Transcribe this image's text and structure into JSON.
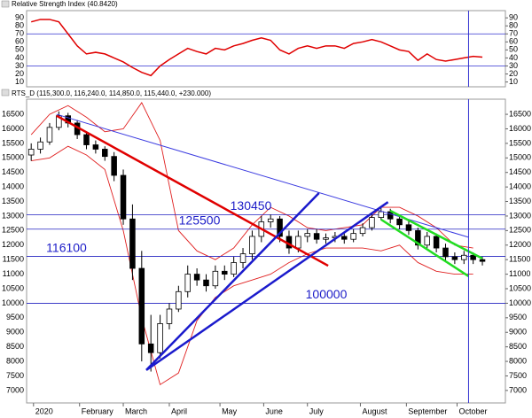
{
  "chart_data": [
    {
      "type": "line",
      "title": "Relative Strength Index (40.8420)",
      "xlim": [
        -2,
        206
      ],
      "ylim": [
        4,
        99
      ],
      "yticks": [
        10,
        20,
        30,
        40,
        50,
        60,
        70,
        80,
        90
      ],
      "levels": [
        30,
        70
      ],
      "level_color": "#3030d0",
      "color": "#e00000",
      "x": [
        0,
        4,
        8,
        12,
        16,
        20,
        24,
        28,
        32,
        36,
        40,
        44,
        48,
        52,
        56,
        60,
        64,
        68,
        72,
        76,
        80,
        84,
        88,
        92,
        96,
        100,
        104,
        108,
        112,
        116,
        120,
        124,
        128,
        132,
        136,
        140,
        144,
        148,
        152,
        156,
        160,
        164,
        168,
        172,
        176,
        180,
        184,
        188,
        192,
        196
      ],
      "values": [
        85,
        88,
        88,
        85,
        70,
        55,
        45,
        47,
        45,
        40,
        35,
        28,
        22,
        18,
        30,
        38,
        45,
        52,
        48,
        45,
        52,
        50,
        55,
        58,
        62,
        65,
        62,
        50,
        45,
        52,
        55,
        52,
        55,
        55,
        52,
        58,
        60,
        63,
        60,
        55,
        50,
        48,
        37,
        45,
        38,
        36,
        38,
        40,
        42,
        41
      ],
      "cursor_x": 190
    },
    {
      "type": "candlestick",
      "title": "RTS_D (115,300.0, 116,240.0, 114,850.0, 115,440.0, +230.000)",
      "xlim": [
        -2,
        206
      ],
      "ylim": [
        6570,
        17020
      ],
      "yticks": [
        7000,
        7500,
        8000,
        8500,
        9000,
        9500,
        10000,
        10500,
        11000,
        11500,
        12000,
        12500,
        13000,
        13500,
        14000,
        14500,
        15000,
        15500,
        16000,
        16500
      ],
      "xticks": [
        {
          "value": 1,
          "label": "2020"
        },
        {
          "value": 21,
          "label": "February"
        },
        {
          "value": 40,
          "label": "March"
        },
        {
          "value": 60,
          "label": "April"
        },
        {
          "value": 82,
          "label": "May"
        },
        {
          "value": 101,
          "label": "June"
        },
        {
          "value": 120,
          "label": "July"
        },
        {
          "value": 143,
          "label": "August"
        },
        {
          "value": 163,
          "label": "September"
        },
        {
          "value": 185,
          "label": "October"
        }
      ],
      "x": [
        0,
        4,
        8,
        12,
        16,
        20,
        24,
        28,
        32,
        36,
        40,
        44,
        48,
        52,
        56,
        60,
        64,
        68,
        72,
        76,
        80,
        84,
        88,
        92,
        96,
        100,
        104,
        108,
        112,
        116,
        120,
        124,
        128,
        132,
        136,
        140,
        144,
        148,
        152,
        156,
        160,
        164,
        168,
        172,
        176,
        180,
        184,
        188,
        192,
        196
      ],
      "open": [
        15100,
        15300,
        15550,
        16050,
        16450,
        16200,
        15800,
        15450,
        15300,
        15050,
        14400,
        12900,
        11200,
        8600,
        8300,
        9300,
        9800,
        10400,
        11000,
        10800,
        10600,
        11100,
        11000,
        11400,
        11700,
        12300,
        12800,
        12900,
        12300,
        11900,
        12300,
        12400,
        12200,
        12250,
        12300,
        12200,
        12400,
        12600,
        12950,
        13150,
        12900,
        12700,
        12500,
        12000,
        12300,
        11900,
        11600,
        11500,
        11650,
        11500
      ],
      "high": [
        15500,
        15700,
        16200,
        16600,
        16550,
        16300,
        15900,
        15600,
        15400,
        15200,
        14600,
        13400,
        11800,
        9600,
        9600,
        10000,
        10600,
        11300,
        11200,
        11000,
        11300,
        11300,
        11600,
        11900,
        12500,
        13000,
        13050,
        13000,
        12500,
        12500,
        12550,
        12550,
        12400,
        12450,
        12450,
        12550,
        12750,
        13100,
        13300,
        13250,
        13000,
        12850,
        12600,
        12450,
        12400,
        12050,
        11750,
        11800,
        11750,
        11600
      ],
      "low": [
        14900,
        15150,
        15450,
        15950,
        16050,
        15650,
        15300,
        15150,
        14900,
        14200,
        12700,
        10800,
        8000,
        7650,
        8100,
        9100,
        9700,
        10200,
        10600,
        10400,
        10500,
        10800,
        10900,
        11200,
        11500,
        12100,
        12600,
        12100,
        11700,
        11750,
        12100,
        12050,
        12050,
        12100,
        12050,
        12100,
        12300,
        12500,
        12850,
        12750,
        12550,
        12350,
        11850,
        11900,
        11750,
        11450,
        11350,
        11350,
        11350,
        11300
      ],
      "close": [
        15300,
        15550,
        16050,
        16450,
        16200,
        15800,
        15450,
        15300,
        15050,
        14400,
        12900,
        11200,
        8600,
        8300,
        9300,
        9800,
        10400,
        11000,
        10800,
        10600,
        11100,
        11000,
        11400,
        11700,
        12300,
        12800,
        12900,
        12300,
        11900,
        12300,
        12400,
        12200,
        12250,
        12300,
        12200,
        12400,
        12600,
        12950,
        13150,
        12900,
        12700,
        12500,
        12000,
        12300,
        11900,
        11600,
        11500,
        11650,
        11500,
        11440
      ],
      "up_color": "#ffffff",
      "down_color": "#000000",
      "bands": {
        "color": "#e02020",
        "x": [
          0,
          8,
          16,
          24,
          32,
          40,
          48,
          56,
          64,
          72,
          80,
          88,
          96,
          104,
          112,
          120,
          128,
          136,
          144,
          152,
          160,
          168,
          176,
          184,
          192
        ],
        "upper": [
          15800,
          16500,
          16800,
          16400,
          15900,
          16000,
          16900,
          15600,
          12500,
          11800,
          11500,
          11900,
          12700,
          13300,
          13000,
          12600,
          12500,
          12600,
          12700,
          13300,
          13300,
          13000,
          12600,
          12000,
          11900
        ],
        "lower": [
          14900,
          15000,
          15400,
          15100,
          14600,
          12500,
          9500,
          7200,
          7600,
          9400,
          10200,
          10600,
          10800,
          11000,
          11400,
          11700,
          11900,
          11900,
          11900,
          11800,
          12000,
          11400,
          11100,
          11000,
          11000
        ]
      },
      "hlines": [
        {
          "value": 13045,
          "label": "130450"
        },
        {
          "value": 12550,
          "label": "125500"
        },
        {
          "value": 11610,
          "label": "116100"
        },
        {
          "value": 10000,
          "label": "100000"
        }
      ],
      "hline_color": "#2020c0",
      "trendlines": [
        {
          "color": "#e00000",
          "x": [
            11,
            129
          ],
          "y": [
            16450,
            11290
          ]
        },
        {
          "color": "#3a3ae0",
          "x": [
            11,
            190
          ],
          "y": [
            16500,
            12270
          ]
        },
        {
          "color": "#1a1acc",
          "x": [
            50,
            155
          ],
          "y": [
            7700,
            13480
          ]
        },
        {
          "color": "#1a1acc",
          "x": [
            50,
            125
          ],
          "y": [
            7700,
            13790
          ]
        },
        {
          "color": "#22dd22",
          "x": [
            156,
            196
          ],
          "y": [
            13180,
            11540
          ]
        },
        {
          "color": "#22dd22",
          "x": [
            152,
            190
          ],
          "y": [
            12880,
            10930
          ]
        }
      ],
      "cursor_x": 190
    }
  ]
}
